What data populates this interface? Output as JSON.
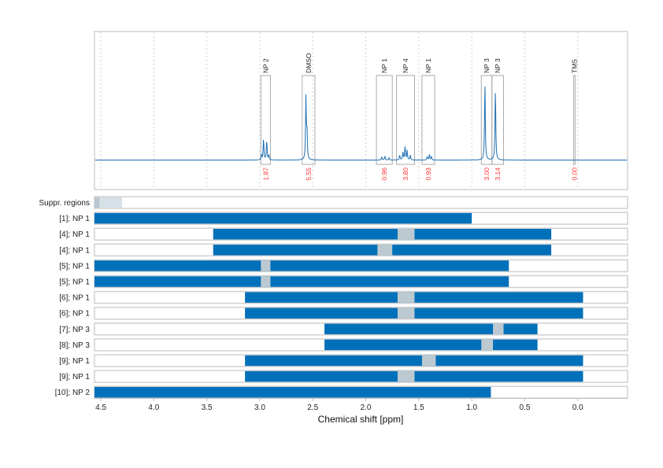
{
  "chart_data": {
    "type": "line",
    "xlabel": "Chemical shift [ppm]",
    "xlim": [
      4.56,
      -0.47
    ],
    "x_reversed": true,
    "xticks": [
      "4.5",
      "4.0",
      "3.5",
      "3.0",
      "2.5",
      "2.0",
      "1.5",
      "1.0",
      "0.5",
      "0.0"
    ],
    "xtick_values": [
      4.5,
      4.0,
      3.5,
      3.0,
      2.5,
      2.0,
      1.5,
      1.0,
      0.5,
      0.0
    ],
    "grid": "vertical dashed",
    "colors": {
      "spectrum": "#1f6fb2",
      "bar": "#0070ba",
      "gap": "#bcc9d1",
      "suppr_dark": "#b8c7d0",
      "suppr_light": "#d6e0e7",
      "integral": "#ff3333",
      "frame": "#c8c8c8"
    },
    "spectrum": {
      "peaks": [
        {
          "ppm": 2.985,
          "intensity": 0.06
        },
        {
          "ppm": 2.965,
          "intensity": 0.27
        },
        {
          "ppm": 2.935,
          "intensity": 0.25
        },
        {
          "ppm": 2.915,
          "intensity": 0.06
        },
        {
          "ppm": 2.565,
          "intensity": 0.77
        },
        {
          "ppm": 2.555,
          "intensity": 0.35
        },
        {
          "ppm": 1.85,
          "intensity": 0.04
        },
        {
          "ppm": 1.82,
          "intensity": 0.05
        },
        {
          "ppm": 1.78,
          "intensity": 0.03
        },
        {
          "ppm": 1.68,
          "intensity": 0.06
        },
        {
          "ppm": 1.65,
          "intensity": 0.1
        },
        {
          "ppm": 1.63,
          "intensity": 0.17
        },
        {
          "ppm": 1.61,
          "intensity": 0.12
        },
        {
          "ppm": 1.58,
          "intensity": 0.06
        },
        {
          "ppm": 1.42,
          "intensity": 0.04
        },
        {
          "ppm": 1.4,
          "intensity": 0.07
        },
        {
          "ppm": 1.38,
          "intensity": 0.04
        },
        {
          "ppm": 0.876,
          "intensity": 1.0
        },
        {
          "ppm": 0.777,
          "intensity": 0.91
        }
      ],
      "regions": [
        {
          "label": "NP 2",
          "from": 2.99,
          "to": 2.9,
          "integral": "1.87"
        },
        {
          "label": "DMSO",
          "from": 2.6,
          "to": 2.48,
          "integral": "5.55"
        },
        {
          "label": "NP 1",
          "from": 1.9,
          "to": 1.75,
          "integral": "0.96"
        },
        {
          "label": "NP 4",
          "from": 1.71,
          "to": 1.54,
          "integral": "3.80"
        },
        {
          "label": "NP 1",
          "from": 1.47,
          "to": 1.35,
          "integral": "0.93"
        },
        {
          "label": "NP 3",
          "from": 0.91,
          "to": 0.81,
          "integral": "3.00"
        },
        {
          "label": "NP 3",
          "from": 0.81,
          "to": 0.7,
          "integral": "3.14"
        },
        {
          "label": "TMS",
          "from": 0.04,
          "to": 0.025,
          "integral": "0.00"
        }
      ]
    },
    "rows": [
      {
        "label": "Suppr. regions",
        "type": "suppr",
        "segments": [
          [
            4.56,
            4.51,
            "dark"
          ],
          [
            4.51,
            4.3,
            "light"
          ]
        ]
      },
      {
        "label": "[1]; NP 1",
        "from": 4.56,
        "to": 1.0,
        "gaps": []
      },
      {
        "label": "[4]; NP 1",
        "from": 3.44,
        "to": 0.25,
        "gaps": [
          [
            1.7,
            1.54
          ]
        ]
      },
      {
        "label": "[4]; NP 1",
        "from": 3.44,
        "to": 0.25,
        "gaps": [
          [
            1.89,
            1.75
          ]
        ]
      },
      {
        "label": "[5]; NP 1",
        "from": 4.56,
        "to": 0.65,
        "gaps": [
          [
            2.99,
            2.9
          ]
        ]
      },
      {
        "label": "[5]; NP 1",
        "from": 4.56,
        "to": 0.65,
        "gaps": [
          [
            2.99,
            2.9
          ]
        ]
      },
      {
        "label": "[6]; NP 1",
        "from": 3.14,
        "to": -0.05,
        "gaps": [
          [
            1.7,
            1.54
          ]
        ]
      },
      {
        "label": "[6]; NP 1",
        "from": 3.14,
        "to": -0.05,
        "gaps": [
          [
            1.7,
            1.54
          ]
        ]
      },
      {
        "label": "[7]; NP 3",
        "from": 2.39,
        "to": 0.38,
        "gaps": [
          [
            0.8,
            0.7
          ]
        ]
      },
      {
        "label": "[8]; NP 3",
        "from": 2.39,
        "to": 0.38,
        "gaps": [
          [
            0.91,
            0.8
          ]
        ]
      },
      {
        "label": "[9]; NP 1",
        "from": 3.14,
        "to": -0.05,
        "gaps": [
          [
            1.47,
            1.34
          ]
        ]
      },
      {
        "label": "[9]; NP 1",
        "from": 3.14,
        "to": -0.05,
        "gaps": [
          [
            1.7,
            1.54
          ]
        ]
      },
      {
        "label": "[10]; NP 2",
        "from": 4.56,
        "to": 0.82,
        "gaps": []
      }
    ]
  }
}
